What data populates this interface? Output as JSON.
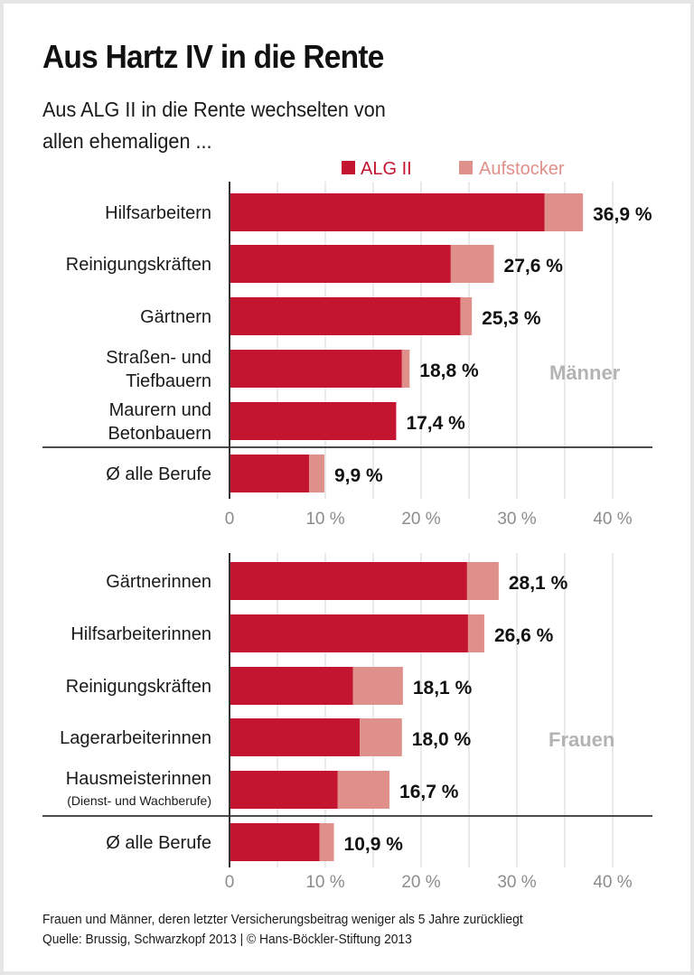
{
  "header": {
    "title": "Aus Hartz IV in die Rente",
    "subtitle_line1": "Aus ALG II in die Rente wechselten von",
    "subtitle_line2": "allen ehemaligen ..."
  },
  "legend": [
    {
      "label": "ALG II",
      "color": "#c41530"
    },
    {
      "label": "Aufstocker",
      "color": "#e0908a"
    }
  ],
  "footnote": {
    "line1": "Frauen und Männer, deren letzter Versicherungsbeitrag weniger als 5 Jahre zurückliegt",
    "line2": "Quelle: Brussig, Schwarzkopf 2013 | © Hans-Böckler-Stiftung 2013"
  },
  "chart_data": [
    {
      "type": "bar",
      "orientation": "horizontal",
      "stacked": true,
      "group_label": "Männer",
      "categories": [
        {
          "line1": "Hilfsarbeitern",
          "line2": ""
        },
        {
          "line1": "Reinigungskräften",
          "line2": ""
        },
        {
          "line1": "Gärtnern",
          "line2": ""
        },
        {
          "line1": "Straßen- und",
          "line2": "Tiefbauern"
        },
        {
          "line1": "Maurern und",
          "line2": "Betonbauern"
        },
        {
          "line1": "Ø alle Berufe",
          "line2": ""
        }
      ],
      "series": [
        {
          "name": "ALG II",
          "values": [
            32.9,
            23.1,
            24.1,
            18.0,
            17.4,
            8.3
          ]
        },
        {
          "name": "Aufstocker",
          "values": [
            4.0,
            4.5,
            1.2,
            0.8,
            0.0,
            1.6
          ]
        }
      ],
      "totals": [
        36.9,
        27.6,
        25.3,
        18.8,
        17.4,
        9.9
      ],
      "value_labels": [
        "36,9 %",
        "27,6 %",
        "25,3 %",
        "18,8 %",
        "17,4 %",
        "9,9 %"
      ],
      "xlim": [
        0,
        42
      ],
      "xticks": [
        0,
        10,
        20,
        30,
        40
      ],
      "xtick_labels": [
        "0",
        "10 %",
        "20 %",
        "30 %",
        "40 %"
      ],
      "grid_step": 5,
      "average_separated": true
    },
    {
      "type": "bar",
      "orientation": "horizontal",
      "stacked": true,
      "group_label": "Frauen",
      "categories": [
        {
          "line1": "Gärtnerinnen",
          "line2": ""
        },
        {
          "line1": "Hilfsarbeiterinnen",
          "line2": ""
        },
        {
          "line1": "Reinigungskräften",
          "line2": ""
        },
        {
          "line1": "Lagerarbeiterinnen",
          "line2": ""
        },
        {
          "line1": "Hausmeisterinnen",
          "line2": "(Dienst- und Wachberufe)"
        },
        {
          "line1": "Ø alle Berufe",
          "line2": ""
        }
      ],
      "series": [
        {
          "name": "ALG II",
          "values": [
            24.8,
            24.9,
            12.9,
            13.6,
            11.3,
            9.4
          ]
        },
        {
          "name": "Aufstocker",
          "values": [
            3.3,
            1.7,
            5.2,
            4.4,
            5.4,
            1.5
          ]
        }
      ],
      "totals": [
        28.1,
        26.6,
        18.1,
        18.0,
        16.7,
        10.9
      ],
      "value_labels": [
        "28,1 %",
        "26,6 %",
        "18,1 %",
        "18,0 %",
        "16,7 %",
        "10,9 %"
      ],
      "xlim": [
        0,
        42
      ],
      "xticks": [
        0,
        10,
        20,
        30,
        40
      ],
      "xtick_labels": [
        "0",
        "10 %",
        "20 %",
        "30 %",
        "40 %"
      ],
      "grid_step": 5,
      "average_separated": true
    }
  ]
}
